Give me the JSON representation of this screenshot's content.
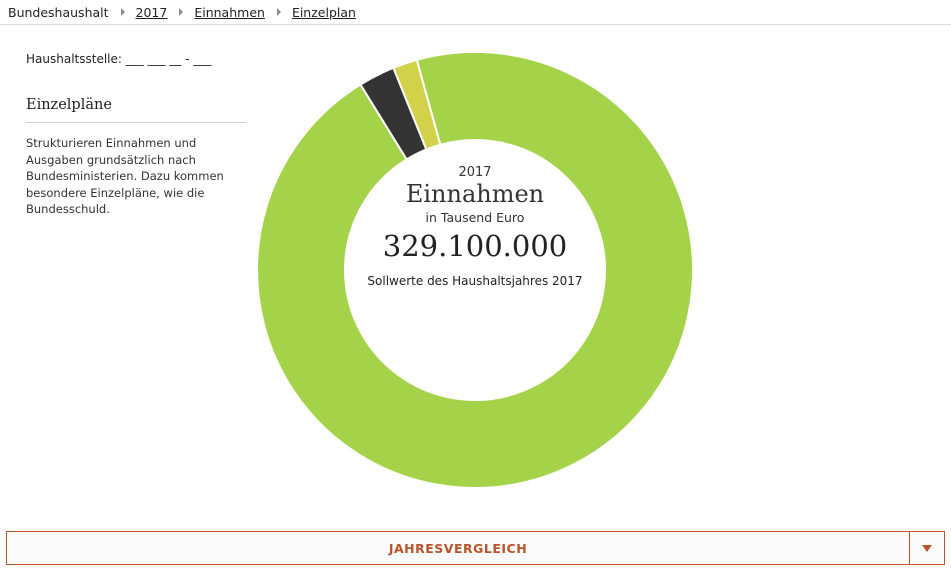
{
  "breadcrumb": {
    "items": [
      {
        "label": "Bundeshaushalt"
      },
      {
        "label": "2017"
      },
      {
        "label": "Einnahmen"
      },
      {
        "label": "Einzelplan"
      }
    ]
  },
  "sidebar": {
    "haushaltsstelle": "Haushaltsstelle: ___ ___ __ - ___",
    "title": "Einzelpläne",
    "description": "Strukturieren Einnahmen und Ausgaben grundsätzlich nach Bundesministerien. Dazu kommen besondere Einzelpläne, wie die Bundesschuld."
  },
  "center": {
    "year": "2017",
    "title": "Einnahmen",
    "unit": "in Tausend Euro",
    "total": "329.100.000",
    "note": "Sollwerte des Haushaltsjahres 2017"
  },
  "chart_data": {
    "type": "pie",
    "variant": "donut",
    "slices": [
      {
        "color": "#a4d34a",
        "fraction": 0.955
      },
      {
        "color": "#333333",
        "fraction": 0.027
      },
      {
        "color": "#d1d14a",
        "fraction": 0.018
      }
    ]
  },
  "footer": {
    "toggle_label": "JAHRESVERGLEICH",
    "toggle_icon": "triangle-down-icon",
    "accent_color": "#b85428"
  }
}
